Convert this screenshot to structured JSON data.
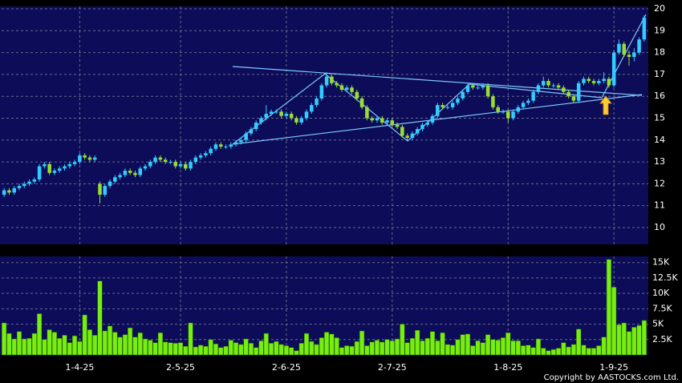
{
  "chart_data": {
    "type": "candlestick",
    "copyright": "Copyright by AASTOCKS.com Ltd.",
    "up_color": "#33ccff",
    "down_color": "#99dd33",
    "volume_color": "#77ee11",
    "grid": true,
    "categories": [
      null,
      null,
      null,
      null,
      null,
      null,
      null,
      null,
      null,
      null,
      null,
      null,
      null,
      null,
      null,
      "1-4-25",
      null,
      null,
      null,
      null,
      null,
      null,
      null,
      null,
      null,
      null,
      null,
      null,
      null,
      null,
      null,
      null,
      null,
      null,
      null,
      "2-5-25",
      null,
      null,
      null,
      null,
      null,
      null,
      null,
      null,
      null,
      null,
      null,
      null,
      null,
      null,
      null,
      null,
      null,
      null,
      null,
      null,
      "2-6-25",
      null,
      null,
      null,
      null,
      null,
      null,
      null,
      null,
      null,
      null,
      null,
      null,
      null,
      null,
      null,
      null,
      null,
      null,
      null,
      null,
      "2-7-25",
      null,
      null,
      null,
      null,
      null,
      null,
      null,
      null,
      null,
      null,
      null,
      null,
      null,
      null,
      null,
      null,
      null,
      null,
      null,
      null,
      null,
      null,
      "1-8-25",
      null,
      null,
      null,
      null,
      null,
      null,
      null,
      null,
      null,
      null,
      null,
      null,
      null,
      null,
      null,
      null,
      null,
      null,
      null,
      null,
      "1-9-25",
      null,
      null,
      null,
      null,
      null,
      null
    ],
    "open": [
      11.5,
      11.7,
      11.6,
      11.8,
      11.9,
      12.0,
      12.1,
      12.2,
      12.8,
      12.9,
      12.5,
      12.6,
      12.7,
      12.8,
      12.9,
      13.0,
      13.3,
      13.2,
      13.1,
      12.0,
      11.5,
      11.9,
      12.1,
      12.3,
      12.4,
      12.6,
      12.5,
      12.4,
      12.7,
      12.8,
      13.0,
      13.2,
      13.1,
      13.0,
      13.0,
      12.8,
      12.9,
      12.7,
      13.0,
      13.2,
      13.3,
      13.4,
      13.6,
      13.8,
      13.7,
      13.7,
      13.8,
      13.9,
      14.0,
      14.3,
      14.5,
      14.8,
      15.0,
      15.2,
      15.3,
      15.3,
      15.1,
      15.2,
      15.0,
      14.8,
      15.0,
      15.3,
      15.6,
      15.9,
      16.5,
      16.9,
      16.6,
      16.5,
      16.3,
      16.4,
      16.2,
      15.9,
      15.5,
      15.0,
      14.9,
      15.0,
      14.8,
      14.9,
      14.7,
      14.6,
      14.2,
      14.1,
      14.3,
      14.5,
      14.7,
      14.8,
      15.1,
      15.6,
      15.5,
      15.5,
      15.7,
      15.9,
      16.2,
      16.5,
      16.4,
      16.4,
      16.5,
      16.0,
      15.5,
      15.3,
      15.3,
      15.0,
      15.3,
      15.5,
      15.7,
      15.8,
      16.2,
      16.5,
      16.7,
      16.5,
      16.5,
      16.4,
      16.2,
      16.0,
      15.8,
      16.6,
      16.8,
      16.7,
      16.6,
      16.7,
      16.8,
      16.5,
      18.0,
      18.4,
      17.9,
      17.8,
      18.0,
      18.6
    ],
    "high": [
      11.8,
      11.8,
      11.9,
      12.0,
      12.1,
      12.2,
      12.3,
      12.9,
      13.0,
      13.0,
      12.7,
      12.8,
      12.9,
      13.0,
      13.1,
      13.4,
      13.4,
      13.3,
      13.3,
      12.1,
      12.0,
      12.2,
      12.4,
      12.5,
      12.7,
      12.7,
      12.6,
      12.8,
      12.9,
      13.1,
      13.3,
      13.3,
      13.2,
      13.1,
      13.1,
      13.0,
      13.0,
      13.1,
      13.3,
      13.4,
      13.5,
      13.7,
      13.9,
      13.9,
      13.8,
      13.9,
      14.0,
      14.1,
      14.4,
      14.6,
      14.9,
      15.1,
      15.6,
      15.4,
      15.4,
      15.4,
      15.3,
      15.3,
      15.1,
      15.1,
      15.4,
      15.7,
      16.0,
      16.6,
      17.1,
      17.0,
      16.7,
      16.6,
      16.5,
      16.5,
      16.3,
      16.0,
      15.6,
      15.1,
      15.1,
      15.1,
      15.0,
      15.0,
      14.8,
      14.7,
      14.3,
      14.4,
      14.6,
      14.8,
      14.9,
      15.2,
      15.7,
      15.7,
      15.6,
      15.8,
      16.0,
      16.3,
      16.6,
      16.6,
      16.5,
      16.6,
      16.6,
      16.1,
      15.6,
      15.4,
      15.4,
      15.4,
      15.6,
      15.8,
      15.9,
      16.3,
      16.6,
      16.9,
      16.8,
      16.6,
      16.6,
      16.5,
      16.3,
      16.1,
      16.7,
      16.9,
      16.9,
      16.8,
      16.8,
      17.1,
      16.9,
      18.1,
      18.6,
      18.5,
      18.1,
      18.2,
      18.7,
      19.7
    ],
    "low": [
      11.4,
      11.5,
      11.5,
      11.7,
      11.8,
      11.9,
      12.0,
      12.1,
      12.7,
      12.4,
      12.4,
      12.5,
      12.6,
      12.7,
      12.8,
      12.9,
      13.1,
      13.0,
      13.0,
      11.1,
      11.4,
      11.8,
      12.0,
      12.2,
      12.3,
      12.4,
      12.3,
      12.3,
      12.6,
      12.7,
      12.9,
      13.0,
      12.9,
      12.9,
      12.7,
      12.7,
      12.6,
      12.6,
      12.9,
      13.1,
      13.2,
      13.3,
      13.5,
      13.6,
      13.6,
      13.6,
      13.7,
      13.8,
      13.9,
      14.2,
      14.4,
      14.7,
      14.9,
      15.1,
      15.2,
      15.0,
      15.0,
      14.9,
      14.7,
      14.7,
      14.9,
      15.2,
      15.5,
      15.8,
      16.4,
      16.5,
      16.4,
      16.2,
      16.2,
      16.1,
      15.8,
      15.4,
      14.9,
      14.8,
      14.8,
      14.7,
      14.7,
      14.6,
      14.5,
      14.1,
      14.0,
      14.0,
      14.2,
      14.4,
      14.6,
      14.7,
      15.0,
      15.4,
      15.4,
      15.4,
      15.6,
      15.8,
      16.1,
      16.3,
      16.3,
      16.3,
      15.9,
      15.4,
      15.2,
      15.2,
      14.8,
      14.9,
      15.2,
      15.4,
      15.6,
      15.7,
      16.1,
      16.4,
      16.4,
      16.4,
      16.3,
      16.1,
      15.9,
      15.7,
      15.7,
      16.5,
      16.6,
      16.5,
      16.5,
      16.6,
      16.4,
      16.4,
      17.9,
      17.8,
      17.4,
      17.6,
      17.9,
      18.5
    ],
    "close": [
      11.7,
      11.6,
      11.8,
      11.9,
      12.0,
      12.1,
      12.2,
      12.8,
      12.9,
      12.5,
      12.6,
      12.7,
      12.8,
      12.9,
      13.0,
      13.3,
      13.2,
      13.1,
      13.2,
      11.5,
      11.9,
      12.1,
      12.3,
      12.4,
      12.6,
      12.5,
      12.4,
      12.7,
      12.8,
      13.0,
      13.2,
      13.1,
      13.0,
      13.0,
      12.8,
      12.9,
      12.7,
      13.0,
      13.2,
      13.3,
      13.4,
      13.6,
      13.8,
      13.7,
      13.7,
      13.8,
      13.9,
      14.0,
      14.3,
      14.5,
      14.8,
      15.0,
      15.2,
      15.3,
      15.3,
      15.1,
      15.2,
      15.0,
      14.8,
      15.0,
      15.3,
      15.6,
      15.9,
      16.5,
      16.9,
      16.6,
      16.5,
      16.3,
      16.4,
      16.2,
      15.9,
      15.5,
      15.0,
      14.9,
      15.0,
      14.8,
      14.9,
      14.7,
      14.6,
      14.2,
      14.1,
      14.3,
      14.5,
      14.7,
      14.8,
      15.1,
      15.6,
      15.5,
      15.5,
      15.7,
      15.9,
      16.2,
      16.5,
      16.4,
      16.4,
      16.5,
      16.0,
      15.5,
      15.3,
      15.3,
      15.0,
      15.3,
      15.5,
      15.7,
      15.8,
      16.2,
      16.5,
      16.7,
      16.5,
      16.5,
      16.4,
      16.2,
      16.0,
      15.8,
      16.6,
      16.8,
      16.7,
      16.6,
      16.7,
      16.8,
      16.5,
      18.0,
      18.4,
      17.9,
      17.8,
      18.0,
      18.6,
      19.6
    ],
    "volume": [
      5200,
      3500,
      2600,
      3800,
      2600,
      2700,
      3500,
      6700,
      2500,
      4100,
      3700,
      2700,
      3200,
      2000,
      3100,
      2200,
      6500,
      4100,
      3200,
      12000,
      3900,
      4700,
      3700,
      2900,
      3300,
      4400,
      2900,
      3600,
      2600,
      2400,
      2000,
      3600,
      2100,
      2000,
      1900,
      2000,
      1400,
      5200,
      1300,
      1600,
      1400,
      2500,
      1800,
      1200,
      1400,
      2400,
      2000,
      1700,
      2600,
      1900,
      1200,
      2300,
      3500,
      1900,
      2200,
      1700,
      1500,
      1200,
      700,
      1900,
      3500,
      2200,
      1700,
      2800,
      3700,
      3400,
      2800,
      1200,
      1500,
      1400,
      2200,
      3900,
      1500,
      2100,
      2400,
      2100,
      2500,
      2300,
      2600,
      5000,
      2000,
      2700,
      4000,
      2300,
      2700,
      3800,
      2300,
      3600,
      1700,
      1600,
      2500,
      3300,
      3400,
      1500,
      2300,
      2000,
      3300,
      2500,
      2400,
      2800,
      3600,
      2300,
      2300,
      1500,
      1600,
      1200,
      2600,
      1100,
      700,
      900,
      1100,
      2000,
      1300,
      1700,
      4200,
      1600,
      1100,
      1100,
      1500,
      2900,
      15500,
      11000,
      4900,
      5200,
      3800,
      4500,
      4800,
      5600
    ],
    "ylim": [
      9.23,
      20.11
    ],
    "yticks": [
      10,
      11,
      12,
      13,
      14,
      15,
      16,
      17,
      18,
      19,
      20
    ],
    "volume_ylim": [
      0,
      16000
    ],
    "volume_yticks": [
      {
        "value": 2500,
        "label": "2.5K"
      },
      {
        "value": 5000,
        "label": "5K"
      },
      {
        "value": 7500,
        "label": "7.5K"
      },
      {
        "value": 10000,
        "label": "10K"
      },
      {
        "value": 12500,
        "label": "12.5K"
      },
      {
        "value": 15000,
        "label": "15K"
      }
    ]
  }
}
